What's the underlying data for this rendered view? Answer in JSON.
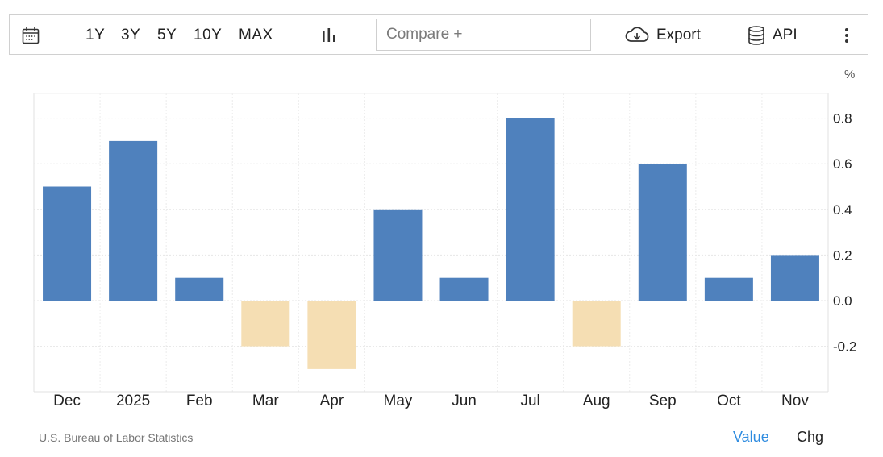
{
  "toolbar": {
    "calendar_icon": "calendar-icon",
    "ranges": [
      "1Y",
      "3Y",
      "5Y",
      "10Y",
      "MAX"
    ],
    "chart_type_icon": "bar-chart-icon",
    "compare_placeholder": "Compare +",
    "export_icon": "cloud-download-icon",
    "export_label": "Export",
    "api_icon": "database-icon",
    "api_label": "API",
    "more_icon": "more-vertical-icon"
  },
  "chart_data": {
    "type": "bar",
    "categories": [
      "Dec",
      "2025",
      "Feb",
      "Mar",
      "Apr",
      "May",
      "Jun",
      "Jul",
      "Aug",
      "Sep",
      "Oct",
      "Nov"
    ],
    "values": [
      0.5,
      0.7,
      0.1,
      -0.2,
      -0.3,
      0.4,
      0.1,
      0.8,
      -0.2,
      0.6,
      0.1,
      0.2
    ],
    "unit_label": "%",
    "ylim": [
      -0.4,
      0.9
    ],
    "yticks": [
      0.8,
      0.6,
      0.4,
      0.2,
      0.0,
      -0.2
    ],
    "ytick_labels": [
      "0.8",
      "0.6",
      "0.4",
      "0.2",
      "0.0",
      "-0.2"
    ],
    "y_axis_side": "right",
    "grid": true,
    "positive_color": "#4f81bd",
    "negative_color": "#f5deb3"
  },
  "footer": {
    "source": "U.S. Bureau of Labor Statistics",
    "tab_value": "Value",
    "tab_chg": "Chg"
  }
}
